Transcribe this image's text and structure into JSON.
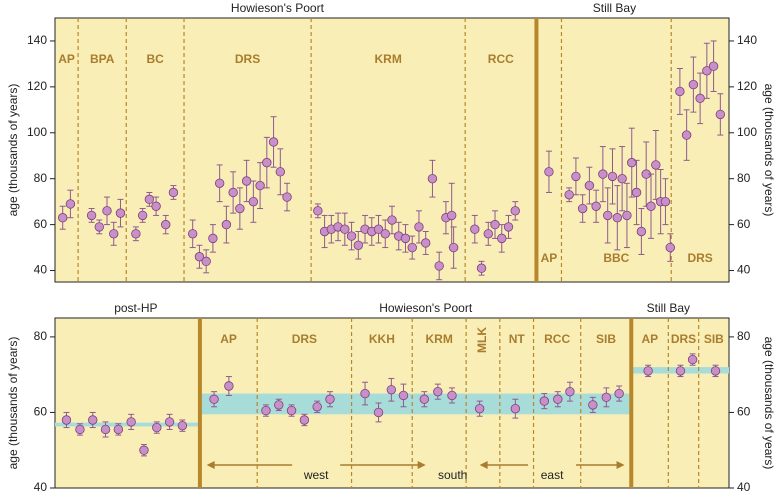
{
  "colors": {
    "panel_bg": "#f9efb6",
    "divider": "#b8862b",
    "site_label": "#a97c2e",
    "point_fill": "#c98fc9",
    "point_stroke": "#7b3f7b",
    "error_bar": "#8e5a8e",
    "band": "#a8dcd8",
    "axis": "#222222",
    "arrow": "#a97c2e"
  },
  "chart_data": [
    {
      "type": "scatter",
      "name": "top-panel",
      "ylabel": "age (thousands of years)",
      "ylim": [
        35,
        150
      ],
      "yticks": [
        40,
        60,
        80,
        100,
        120,
        140
      ],
      "period_labels": [
        {
          "text": "Howieson's Poort",
          "at": 0.33
        },
        {
          "text": "Still Bay",
          "at": 0.83
        }
      ],
      "sites": [
        {
          "label": "AP",
          "from": 0,
          "to": 2.4,
          "label_row": "top"
        },
        {
          "label": "BPA",
          "from": 2.4,
          "to": 7.4,
          "label_row": "top"
        },
        {
          "label": "BC",
          "from": 7.4,
          "to": 13.4,
          "label_row": "top"
        },
        {
          "label": "DRS",
          "from": 13.4,
          "to": 26.6,
          "label_row": "top"
        },
        {
          "label": "KRM",
          "from": 26.6,
          "to": 42.6,
          "label_row": "top"
        },
        {
          "label": "RCC",
          "from": 42.6,
          "to": 50,
          "label_row": "top"
        },
        {
          "label": "AP",
          "from": 50,
          "to": 52.6,
          "label_row": "bottom"
        },
        {
          "label": "BBC",
          "from": 52.6,
          "to": 64,
          "label_row": "bottom"
        },
        {
          "label": "DRS",
          "from": 64,
          "to": 70,
          "label_row": "bottom"
        }
      ],
      "period_split": 50,
      "x_range": [
        0,
        70
      ],
      "points": [
        {
          "x": 0.8,
          "y": 63,
          "err": 5
        },
        {
          "x": 1.6,
          "y": 69,
          "err": 6
        },
        {
          "x": 3.8,
          "y": 64,
          "err": 3
        },
        {
          "x": 4.6,
          "y": 59,
          "err": 3
        },
        {
          "x": 5.4,
          "y": 66,
          "err": 6
        },
        {
          "x": 6.1,
          "y": 56,
          "err": 5
        },
        {
          "x": 6.8,
          "y": 65,
          "err": 6
        },
        {
          "x": 8.4,
          "y": 56,
          "err": 3
        },
        {
          "x": 9.1,
          "y": 64,
          "err": 3
        },
        {
          "x": 9.8,
          "y": 71,
          "err": 3
        },
        {
          "x": 10.5,
          "y": 68,
          "err": 4
        },
        {
          "x": 11.5,
          "y": 60,
          "err": 4
        },
        {
          "x": 12.3,
          "y": 74,
          "err": 3
        },
        {
          "x": 14.3,
          "y": 56,
          "err": 6
        },
        {
          "x": 15.0,
          "y": 46,
          "err": 5
        },
        {
          "x": 15.7,
          "y": 44,
          "err": 5
        },
        {
          "x": 16.4,
          "y": 54,
          "err": 6
        },
        {
          "x": 17.1,
          "y": 78,
          "err": 8
        },
        {
          "x": 17.8,
          "y": 60,
          "err": 8
        },
        {
          "x": 18.5,
          "y": 74,
          "err": 9
        },
        {
          "x": 19.2,
          "y": 67,
          "err": 9
        },
        {
          "x": 19.9,
          "y": 79,
          "err": 9
        },
        {
          "x": 20.6,
          "y": 70,
          "err": 9
        },
        {
          "x": 21.3,
          "y": 77,
          "err": 10
        },
        {
          "x": 22.0,
          "y": 87,
          "err": 11
        },
        {
          "x": 22.7,
          "y": 96,
          "err": 11
        },
        {
          "x": 23.4,
          "y": 83,
          "err": 10
        },
        {
          "x": 24.1,
          "y": 72,
          "err": 6
        },
        {
          "x": 27.3,
          "y": 66,
          "err": 3
        },
        {
          "x": 28.0,
          "y": 57,
          "err": 7
        },
        {
          "x": 28.7,
          "y": 58,
          "err": 6
        },
        {
          "x": 29.4,
          "y": 59,
          "err": 6
        },
        {
          "x": 30.1,
          "y": 58,
          "err": 7
        },
        {
          "x": 30.8,
          "y": 55,
          "err": 6
        },
        {
          "x": 31.5,
          "y": 51,
          "err": 6
        },
        {
          "x": 32.2,
          "y": 58,
          "err": 6
        },
        {
          "x": 32.9,
          "y": 57,
          "err": 6
        },
        {
          "x": 33.6,
          "y": 58,
          "err": 6
        },
        {
          "x": 34.3,
          "y": 56,
          "err": 6
        },
        {
          "x": 35.0,
          "y": 62,
          "err": 6
        },
        {
          "x": 35.7,
          "y": 55,
          "err": 6
        },
        {
          "x": 36.4,
          "y": 54,
          "err": 6
        },
        {
          "x": 37.1,
          "y": 50,
          "err": 5
        },
        {
          "x": 37.8,
          "y": 59,
          "err": 7
        },
        {
          "x": 38.5,
          "y": 52,
          "err": 5
        },
        {
          "x": 39.2,
          "y": 80,
          "err": 8
        },
        {
          "x": 39.9,
          "y": 42,
          "err": 6
        },
        {
          "x": 40.6,
          "y": 63,
          "err": 7
        },
        {
          "x": 41.2,
          "y": 64,
          "err": 14
        },
        {
          "x": 41.4,
          "y": 50,
          "err": 9
        },
        {
          "x": 43.6,
          "y": 58,
          "err": 6
        },
        {
          "x": 44.3,
          "y": 41,
          "err": 3
        },
        {
          "x": 45.0,
          "y": 56,
          "err": 5
        },
        {
          "x": 45.7,
          "y": 60,
          "err": 6
        },
        {
          "x": 46.4,
          "y": 54,
          "err": 6
        },
        {
          "x": 47.1,
          "y": 59,
          "err": 5
        },
        {
          "x": 47.8,
          "y": 66,
          "err": 4
        },
        {
          "x": 51.3,
          "y": 83,
          "err": 9
        },
        {
          "x": 53.4,
          "y": 73,
          "err": 3
        },
        {
          "x": 54.1,
          "y": 81,
          "err": 8
        },
        {
          "x": 54.8,
          "y": 67,
          "err": 6
        },
        {
          "x": 55.5,
          "y": 77,
          "err": 8
        },
        {
          "x": 56.2,
          "y": 68,
          "err": 7
        },
        {
          "x": 56.9,
          "y": 82,
          "err": 12
        },
        {
          "x": 57.4,
          "y": 64,
          "err": 12
        },
        {
          "x": 57.9,
          "y": 81,
          "err": 12
        },
        {
          "x": 58.4,
          "y": 63,
          "err": 14
        },
        {
          "x": 58.9,
          "y": 80,
          "err": 14
        },
        {
          "x": 59.4,
          "y": 64,
          "err": 14
        },
        {
          "x": 59.9,
          "y": 87,
          "err": 15
        },
        {
          "x": 60.4,
          "y": 74,
          "err": 14
        },
        {
          "x": 60.9,
          "y": 57,
          "err": 10
        },
        {
          "x": 61.4,
          "y": 82,
          "err": 14
        },
        {
          "x": 61.9,
          "y": 68,
          "err": 14
        },
        {
          "x": 62.4,
          "y": 86,
          "err": 15
        },
        {
          "x": 62.9,
          "y": 70,
          "err": 14
        },
        {
          "x": 63.4,
          "y": 70,
          "err": 10
        },
        {
          "x": 63.9,
          "y": 50,
          "err": 6
        },
        {
          "x": 64.9,
          "y": 118,
          "err": 10
        },
        {
          "x": 65.6,
          "y": 99,
          "err": 11
        },
        {
          "x": 66.3,
          "y": 121,
          "err": 12
        },
        {
          "x": 67.0,
          "y": 115,
          "err": 11
        },
        {
          "x": 67.7,
          "y": 127,
          "err": 12
        },
        {
          "x": 68.4,
          "y": 129,
          "err": 11
        },
        {
          "x": 69.1,
          "y": 108,
          "err": 9
        }
      ]
    },
    {
      "type": "scatter",
      "name": "bottom-panel",
      "ylabel": "age (thousands of years)",
      "ylim": [
        40,
        85
      ],
      "yticks": [
        40,
        60,
        80
      ],
      "period_labels": [
        {
          "text": "post-HP",
          "at": 0.12
        },
        {
          "text": "Howieson's Poort",
          "at": 0.55
        },
        {
          "text": "Still Bay",
          "at": 0.91
        }
      ],
      "x_range": [
        0,
        100
      ],
      "period_splits": [
        21.5,
        85.5
      ],
      "sites": [
        {
          "label": "AP",
          "from": 21.5,
          "to": 30
        },
        {
          "label": "DRS",
          "from": 30,
          "to": 44
        },
        {
          "label": "KKH",
          "from": 44,
          "to": 53
        },
        {
          "label": "KRM",
          "from": 53,
          "to": 61
        },
        {
          "label": "MLK",
          "from": 61,
          "to": 66,
          "vertical": true
        },
        {
          "label": "NT",
          "from": 66,
          "to": 71
        },
        {
          "label": "RCC",
          "from": 71,
          "to": 78
        },
        {
          "label": "SIB",
          "from": 78,
          "to": 85.5
        },
        {
          "label": "AP",
          "from": 85.5,
          "to": 91
        },
        {
          "label": "DRS",
          "from": 91,
          "to": 95.5
        },
        {
          "label": "SIB",
          "from": 95.5,
          "to": 100
        }
      ],
      "bands": [
        {
          "from": 0,
          "to": 21.5,
          "y": [
            56.3,
            57.3
          ]
        },
        {
          "from": 21.5,
          "to": 85.5,
          "y": [
            59.5,
            65
          ]
        },
        {
          "from": 85.5,
          "to": 100,
          "y": [
            70.3,
            72
          ]
        }
      ],
      "regions": [
        {
          "text": "west",
          "from": 22.5,
          "to": 55,
          "arrow": "both"
        },
        {
          "text": "south",
          "at": 59
        },
        {
          "text": "east",
          "from": 63,
          "to": 84.5,
          "arrow": "both"
        }
      ],
      "points": [
        {
          "x": 1.7,
          "y": 58,
          "err": 2
        },
        {
          "x": 3.7,
          "y": 55.5,
          "err": 1.5
        },
        {
          "x": 5.6,
          "y": 58,
          "err": 2
        },
        {
          "x": 7.5,
          "y": 55.5,
          "err": 2
        },
        {
          "x": 9.4,
          "y": 55.5,
          "err": 1.5
        },
        {
          "x": 11.3,
          "y": 57.5,
          "err": 2
        },
        {
          "x": 13.2,
          "y": 50,
          "err": 1.5
        },
        {
          "x": 15.1,
          "y": 56,
          "err": 1.5
        },
        {
          "x": 17.0,
          "y": 57.5,
          "err": 2
        },
        {
          "x": 18.9,
          "y": 56.5,
          "err": 1.5
        },
        {
          "x": 23.6,
          "y": 63.5,
          "err": 2
        },
        {
          "x": 25.8,
          "y": 67,
          "err": 2.5
        },
        {
          "x": 31.3,
          "y": 60.5,
          "err": 1.5
        },
        {
          "x": 33.2,
          "y": 62,
          "err": 1.5
        },
        {
          "x": 35.1,
          "y": 60.5,
          "err": 1.5
        },
        {
          "x": 37.0,
          "y": 58,
          "err": 1.5
        },
        {
          "x": 38.9,
          "y": 61.5,
          "err": 1.5
        },
        {
          "x": 40.8,
          "y": 63.5,
          "err": 2
        },
        {
          "x": 46.0,
          "y": 65,
          "err": 3
        },
        {
          "x": 48.0,
          "y": 60,
          "err": 2.5
        },
        {
          "x": 49.9,
          "y": 66,
          "err": 3
        },
        {
          "x": 51.7,
          "y": 64.5,
          "err": 3
        },
        {
          "x": 54.8,
          "y": 63.5,
          "err": 2
        },
        {
          "x": 56.8,
          "y": 65.5,
          "err": 2
        },
        {
          "x": 58.9,
          "y": 64.5,
          "err": 2
        },
        {
          "x": 63.0,
          "y": 61,
          "err": 2
        },
        {
          "x": 68.3,
          "y": 61,
          "err": 2.5
        },
        {
          "x": 72.6,
          "y": 63,
          "err": 2
        },
        {
          "x": 74.6,
          "y": 63.5,
          "err": 2
        },
        {
          "x": 76.4,
          "y": 65.5,
          "err": 2.5
        },
        {
          "x": 79.8,
          "y": 62,
          "err": 2
        },
        {
          "x": 81.8,
          "y": 64,
          "err": 2.5
        },
        {
          "x": 83.7,
          "y": 65,
          "err": 2
        },
        {
          "x": 88.0,
          "y": 71,
          "err": 1.5
        },
        {
          "x": 92.8,
          "y": 71,
          "err": 1.5
        },
        {
          "x": 94.6,
          "y": 74,
          "err": 1.5
        },
        {
          "x": 98.0,
          "y": 71,
          "err": 1.5
        }
      ]
    }
  ]
}
